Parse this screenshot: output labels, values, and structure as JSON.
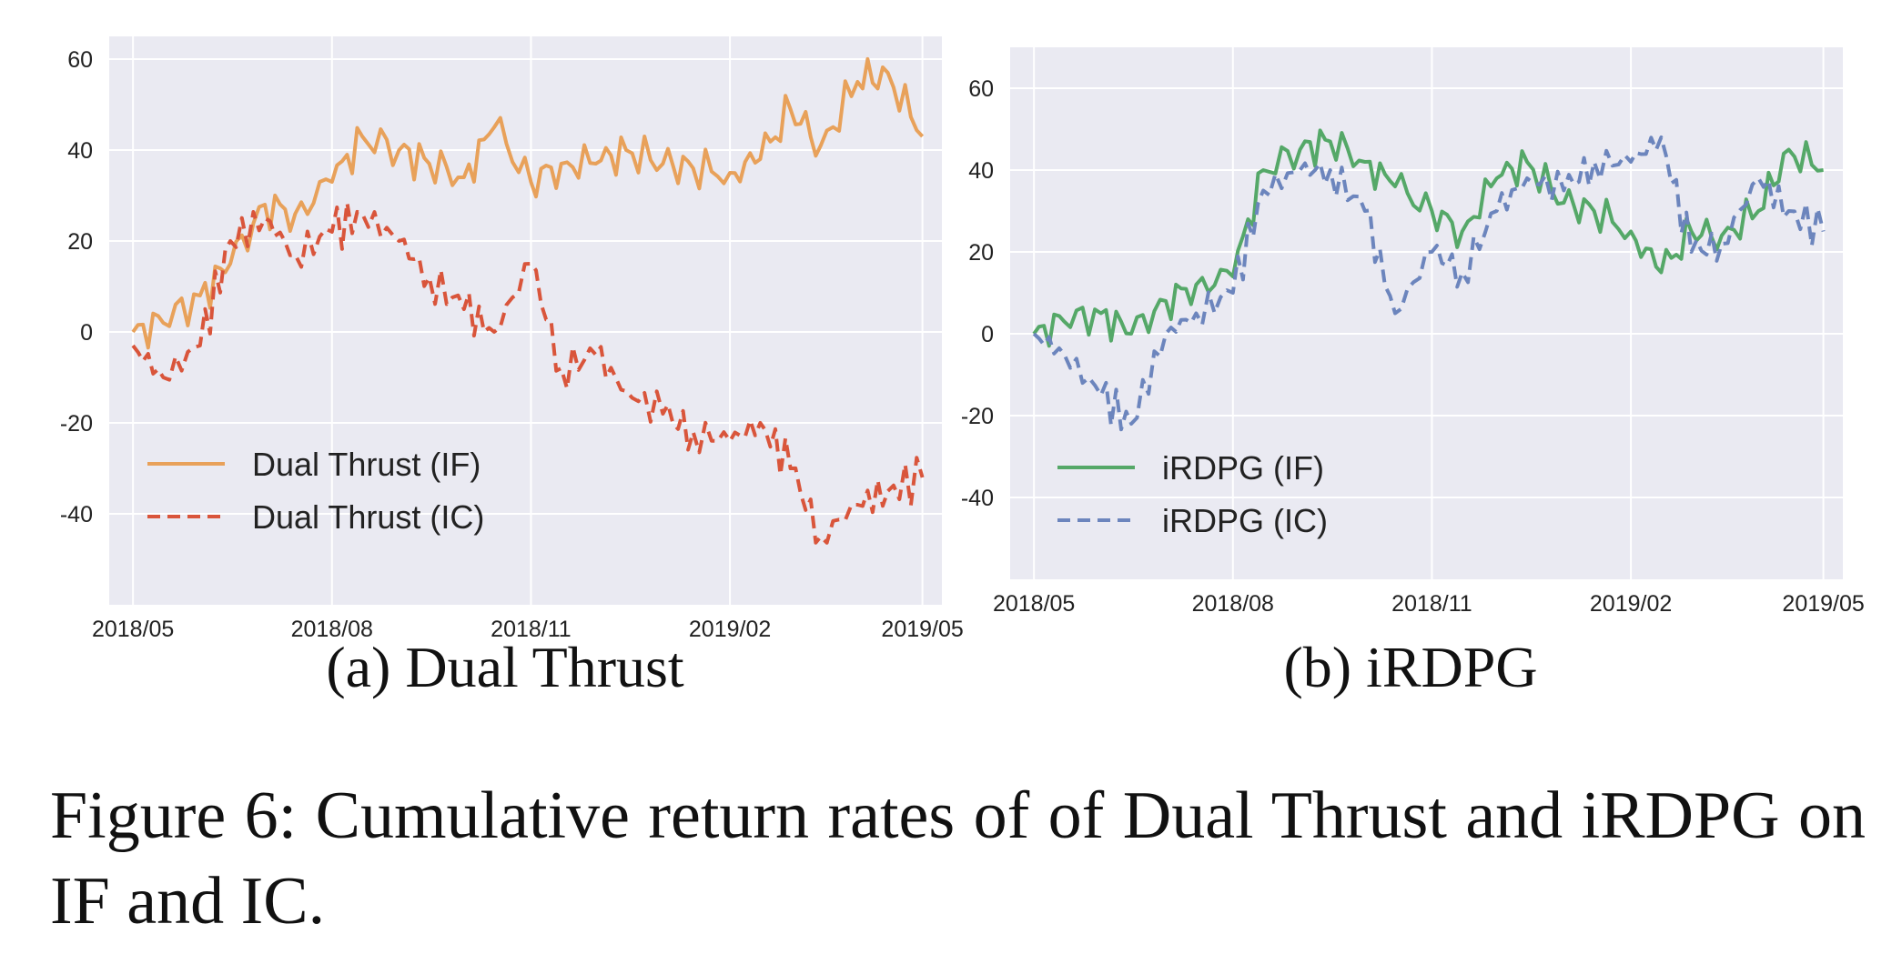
{
  "subplots": [
    {
      "subcaption": "(a) Dual Thrust"
    },
    {
      "subcaption": "(b) iRDPG"
    }
  ],
  "figure_caption": {
    "line1": "Figure 6: Cumulative return rates of of Dual Thrust and",
    "line2": "iRDPG on IF and IC."
  },
  "chart_data": [
    {
      "type": "line",
      "title": "",
      "xlabel": "",
      "ylabel": "",
      "x_ticks": [
        "2018/05",
        "2018/08",
        "2018/11",
        "2019/02",
        "2019/05"
      ],
      "y_ticks": [
        -40,
        -20,
        0,
        20,
        40,
        60
      ],
      "xlim": [
        "2018/04/20",
        "2019/05/10"
      ],
      "ylim": [
        -60,
        65
      ],
      "grid": true,
      "legend_position": "lower-left",
      "x": [
        "2018/05/01",
        "2018/05/15",
        "2018/06/01",
        "2018/06/15",
        "2018/07/01",
        "2018/07/15",
        "2018/08/01",
        "2018/08/15",
        "2018/09/01",
        "2018/09/15",
        "2018/10/01",
        "2018/10/15",
        "2018/11/01",
        "2018/11/15",
        "2018/12/01",
        "2018/12/15",
        "2019/01/01",
        "2019/01/15",
        "2019/02/01",
        "2019/02/15",
        "2019/03/01",
        "2019/03/15",
        "2019/04/01",
        "2019/04/15",
        "2019/05/01"
      ],
      "series": [
        {
          "name": "Dual Thrust (IF)",
          "color": "#E8A15A",
          "dash": "solid",
          "values": [
            0,
            2,
            8,
            15,
            28,
            26,
            33,
            43,
            40,
            37,
            34,
            45,
            33,
            37,
            37,
            40,
            37,
            36,
            35,
            38,
            49,
            41,
            55,
            57,
            43
          ]
        },
        {
          "name": "Dual Thrust (IC)",
          "color": "#D9553B",
          "dash": "dashed",
          "values": [
            -3,
            -10,
            -3,
            20,
            25,
            17,
            22,
            26,
            20,
            12,
            5,
            0,
            15,
            -8,
            -5,
            -13,
            -18,
            -22,
            -24,
            -20,
            -30,
            -45,
            -38,
            -35,
            -32
          ]
        }
      ]
    },
    {
      "type": "line",
      "title": "",
      "xlabel": "",
      "ylabel": "",
      "x_ticks": [
        "2018/05",
        "2018/08",
        "2018/11",
        "2019/02",
        "2019/05"
      ],
      "y_ticks": [
        -40,
        -20,
        0,
        20,
        40,
        60
      ],
      "xlim": [
        "2018/04/20",
        "2019/05/10"
      ],
      "ylim": [
        -60,
        70
      ],
      "grid": true,
      "legend_position": "lower-left",
      "x": [
        "2018/05/01",
        "2018/05/15",
        "2018/06/01",
        "2018/06/15",
        "2018/07/01",
        "2018/07/15",
        "2018/08/01",
        "2018/08/15",
        "2018/09/01",
        "2018/09/15",
        "2018/10/01",
        "2018/10/15",
        "2018/11/01",
        "2018/11/15",
        "2018/12/01",
        "2018/12/15",
        "2019/01/01",
        "2019/01/15",
        "2019/02/01",
        "2019/02/15",
        "2019/03/01",
        "2019/03/15",
        "2019/04/01",
        "2019/04/15",
        "2019/05/01"
      ],
      "series": [
        {
          "name": "iRDPG (IF)",
          "color": "#55A868",
          "dash": "solid",
          "values": [
            0,
            3,
            5,
            0,
            8,
            12,
            14,
            40,
            45,
            47,
            42,
            36,
            30,
            25,
            38,
            42,
            32,
            30,
            25,
            15,
            25,
            24,
            30,
            45,
            40
          ]
        },
        {
          "name": "iRDPG (IC)",
          "color": "#6C85BD",
          "dash": "dashed",
          "values": [
            0,
            -5,
            -15,
            -22,
            0,
            5,
            10,
            35,
            40,
            40,
            30,
            5,
            20,
            15,
            30,
            38,
            35,
            42,
            42,
            48,
            20,
            22,
            38,
            30,
            25
          ]
        }
      ]
    }
  ]
}
